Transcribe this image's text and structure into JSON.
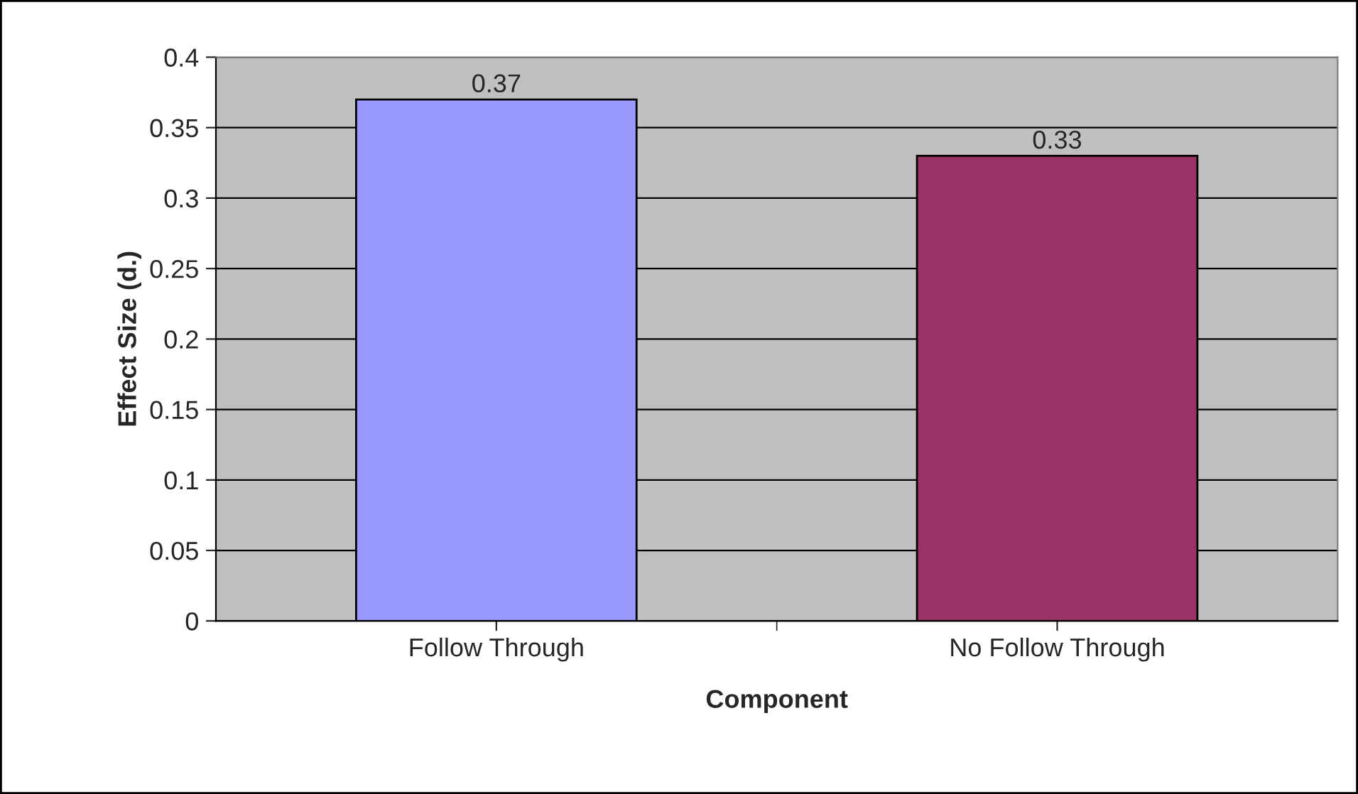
{
  "chart_data": {
    "type": "bar",
    "xlabel": "Component",
    "ylabel": "Effect Size (d.)",
    "categories": [
      "Follow Through",
      "No Follow Through"
    ],
    "values": [
      0.37,
      0.33
    ],
    "colors": [
      "#9999ff",
      "#993366"
    ],
    "ylim": [
      0,
      0.4
    ],
    "yticks": [
      0,
      0.05,
      0.1,
      0.15,
      0.2,
      0.25,
      0.3,
      0.35,
      0.4
    ],
    "grid": "y",
    "data_labels": true
  }
}
